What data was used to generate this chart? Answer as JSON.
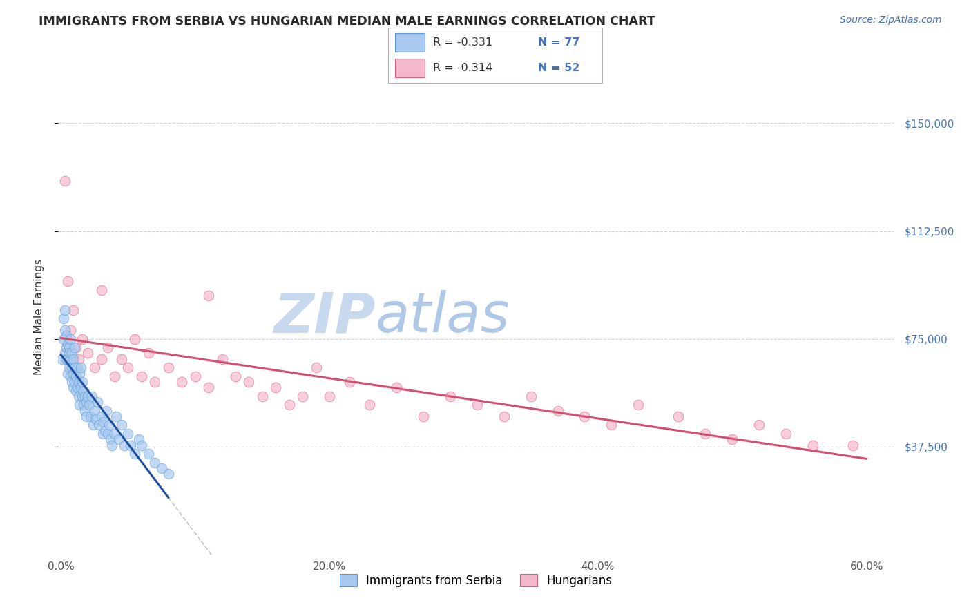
{
  "title": "IMMIGRANTS FROM SERBIA VS HUNGARIAN MEDIAN MALE EARNINGS CORRELATION CHART",
  "source_text": "Source: ZipAtlas.com",
  "ylabel": "Median Male Earnings",
  "xlim": [
    -0.002,
    0.62
  ],
  "ylim": [
    0,
    165000
  ],
  "yticks": [
    37500,
    75000,
    112500,
    150000
  ],
  "ytick_labels": [
    "$37,500",
    "$75,000",
    "$112,500",
    "$150,000"
  ],
  "xticks": [
    0.0,
    0.1,
    0.2,
    0.3,
    0.4,
    0.5,
    0.6
  ],
  "xtick_labels": [
    "0.0%",
    "",
    "20.0%",
    "",
    "40.0%",
    "",
    "60.0%"
  ],
  "title_color": "#2b2b2b",
  "title_fontsize": 12.5,
  "axis_color": "#333333",
  "source_color": "#4472c4",
  "ytick_color": "#4472c4",
  "xtick_color": "#555555",
  "grid_color": "#d0d0d0",
  "serbia_color": "#a8c8f0",
  "serbia_edge_color": "#5b9bd5",
  "hungarian_color": "#f4b8cc",
  "hungarian_edge_color": "#e0607a",
  "legend_r1": "R = -0.331",
  "legend_n1": "N = 77",
  "legend_r2": "R = -0.314",
  "legend_n2": "N = 52",
  "legend_r_color": "#333333",
  "legend_n_color": "#4472c4",
  "regression_serbia_color": "#1f4e9e",
  "regression_hungarian_color": "#d45070",
  "watermark_zip": "ZIP",
  "watermark_atlas": "atlas",
  "watermark_zip_color": "#c8d8ee",
  "watermark_atlas_color": "#b0c8e8",
  "serbia_x": [
    0.001,
    0.002,
    0.002,
    0.003,
    0.003,
    0.003,
    0.004,
    0.004,
    0.004,
    0.005,
    0.005,
    0.005,
    0.006,
    0.006,
    0.006,
    0.007,
    0.007,
    0.007,
    0.008,
    0.008,
    0.008,
    0.009,
    0.009,
    0.009,
    0.01,
    0.01,
    0.01,
    0.011,
    0.011,
    0.012,
    0.012,
    0.013,
    0.013,
    0.014,
    0.014,
    0.015,
    0.015,
    0.016,
    0.016,
    0.017,
    0.017,
    0.018,
    0.018,
    0.019,
    0.019,
    0.02,
    0.021,
    0.022,
    0.023,
    0.024,
    0.025,
    0.026,
    0.027,
    0.028,
    0.03,
    0.031,
    0.032,
    0.033,
    0.034,
    0.035,
    0.036,
    0.037,
    0.038,
    0.04,
    0.041,
    0.043,
    0.045,
    0.047,
    0.05,
    0.052,
    0.055,
    0.058,
    0.06,
    0.065,
    0.07,
    0.075,
    0.08
  ],
  "serbia_y": [
    68000,
    75000,
    82000,
    70000,
    78000,
    85000,
    72000,
    68000,
    76000,
    73000,
    68000,
    63000,
    72000,
    65000,
    70000,
    68000,
    62000,
    75000,
    65000,
    60000,
    70000,
    63000,
    68000,
    58000,
    65000,
    60000,
    72000,
    62000,
    57000,
    65000,
    58000,
    60000,
    55000,
    63000,
    52000,
    58000,
    65000,
    55000,
    60000,
    52000,
    57000,
    50000,
    55000,
    53000,
    48000,
    55000,
    52000,
    48000,
    55000,
    45000,
    50000,
    47000,
    53000,
    45000,
    48000,
    42000,
    46000,
    43000,
    50000,
    42000,
    45000,
    40000,
    38000,
    42000,
    48000,
    40000,
    45000,
    38000,
    42000,
    38000,
    35000,
    40000,
    38000,
    35000,
    32000,
    30000,
    28000
  ],
  "hungarian_x": [
    0.003,
    0.005,
    0.007,
    0.009,
    0.011,
    0.013,
    0.016,
    0.02,
    0.025,
    0.03,
    0.035,
    0.04,
    0.045,
    0.05,
    0.055,
    0.06,
    0.065,
    0.07,
    0.08,
    0.09,
    0.1,
    0.11,
    0.12,
    0.13,
    0.14,
    0.15,
    0.16,
    0.17,
    0.18,
    0.19,
    0.2,
    0.215,
    0.23,
    0.25,
    0.27,
    0.29,
    0.31,
    0.33,
    0.35,
    0.37,
    0.39,
    0.41,
    0.43,
    0.46,
    0.48,
    0.5,
    0.52,
    0.54,
    0.56,
    0.59,
    0.03,
    0.11
  ],
  "hungarian_y": [
    130000,
    95000,
    78000,
    85000,
    72000,
    68000,
    75000,
    70000,
    65000,
    68000,
    72000,
    62000,
    68000,
    65000,
    75000,
    62000,
    70000,
    60000,
    65000,
    60000,
    62000,
    58000,
    68000,
    62000,
    60000,
    55000,
    58000,
    52000,
    55000,
    65000,
    55000,
    60000,
    52000,
    58000,
    48000,
    55000,
    52000,
    48000,
    55000,
    50000,
    48000,
    45000,
    52000,
    48000,
    42000,
    40000,
    45000,
    42000,
    38000,
    38000,
    92000,
    90000
  ]
}
